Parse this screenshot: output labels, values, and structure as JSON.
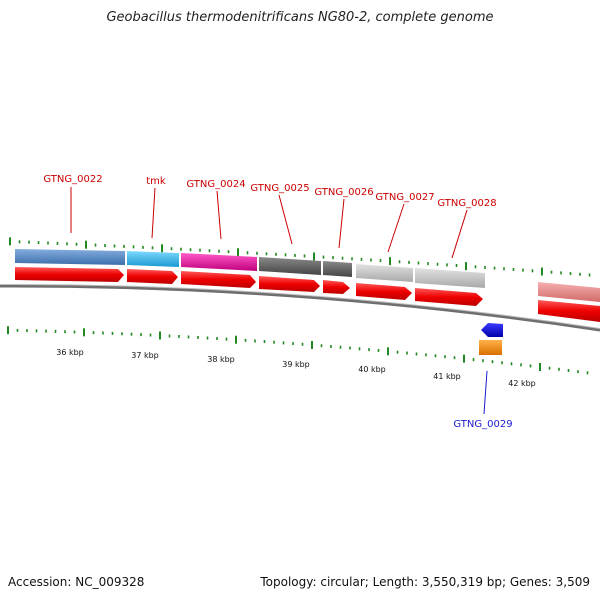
{
  "title": "Geobacillus thermodenitrificans NG80-2, complete genome",
  "footer": {
    "accession": "Accession: NC_009328",
    "stats": "Topology: circular; Length: 3,550,319 bp; Genes: 3,509"
  },
  "gene_labels": [
    {
      "name": "GTNG_0022",
      "color": "#cc0000"
    },
    {
      "name": "tmk",
      "color": "#cc0000"
    },
    {
      "name": "GTNG_0024",
      "color": "#cc0000"
    },
    {
      "name": "GTNG_0025",
      "color": "#cc0000"
    },
    {
      "name": "GTNG_0026",
      "color": "#cc0000"
    },
    {
      "name": "GTNG_0027",
      "color": "#cc0000"
    },
    {
      "name": "GTNG_0028",
      "color": "#cc0000"
    },
    {
      "name": "GTNG_0029",
      "color": "#1a1acc"
    }
  ],
  "kbp_ticks": [
    "36 kbp",
    "37 kbp",
    "38 kbp",
    "39 kbp",
    "40 kbp",
    "41 kbp",
    "42 kbp"
  ],
  "colors": {
    "forward_gene": "#ee0000",
    "backbone": "#888888",
    "tick": "#228822",
    "cog_blue": "#4f86c6",
    "cog_cyan": "#2bb8ea",
    "cog_magenta": "#e0139e",
    "cog_dark_gray": "#5f5f5f",
    "cog_light_gray": "#c4c4c4",
    "cog_salmon": "#e88a8a",
    "reverse_gene": "#0000dd",
    "orange": "#f28c00"
  }
}
